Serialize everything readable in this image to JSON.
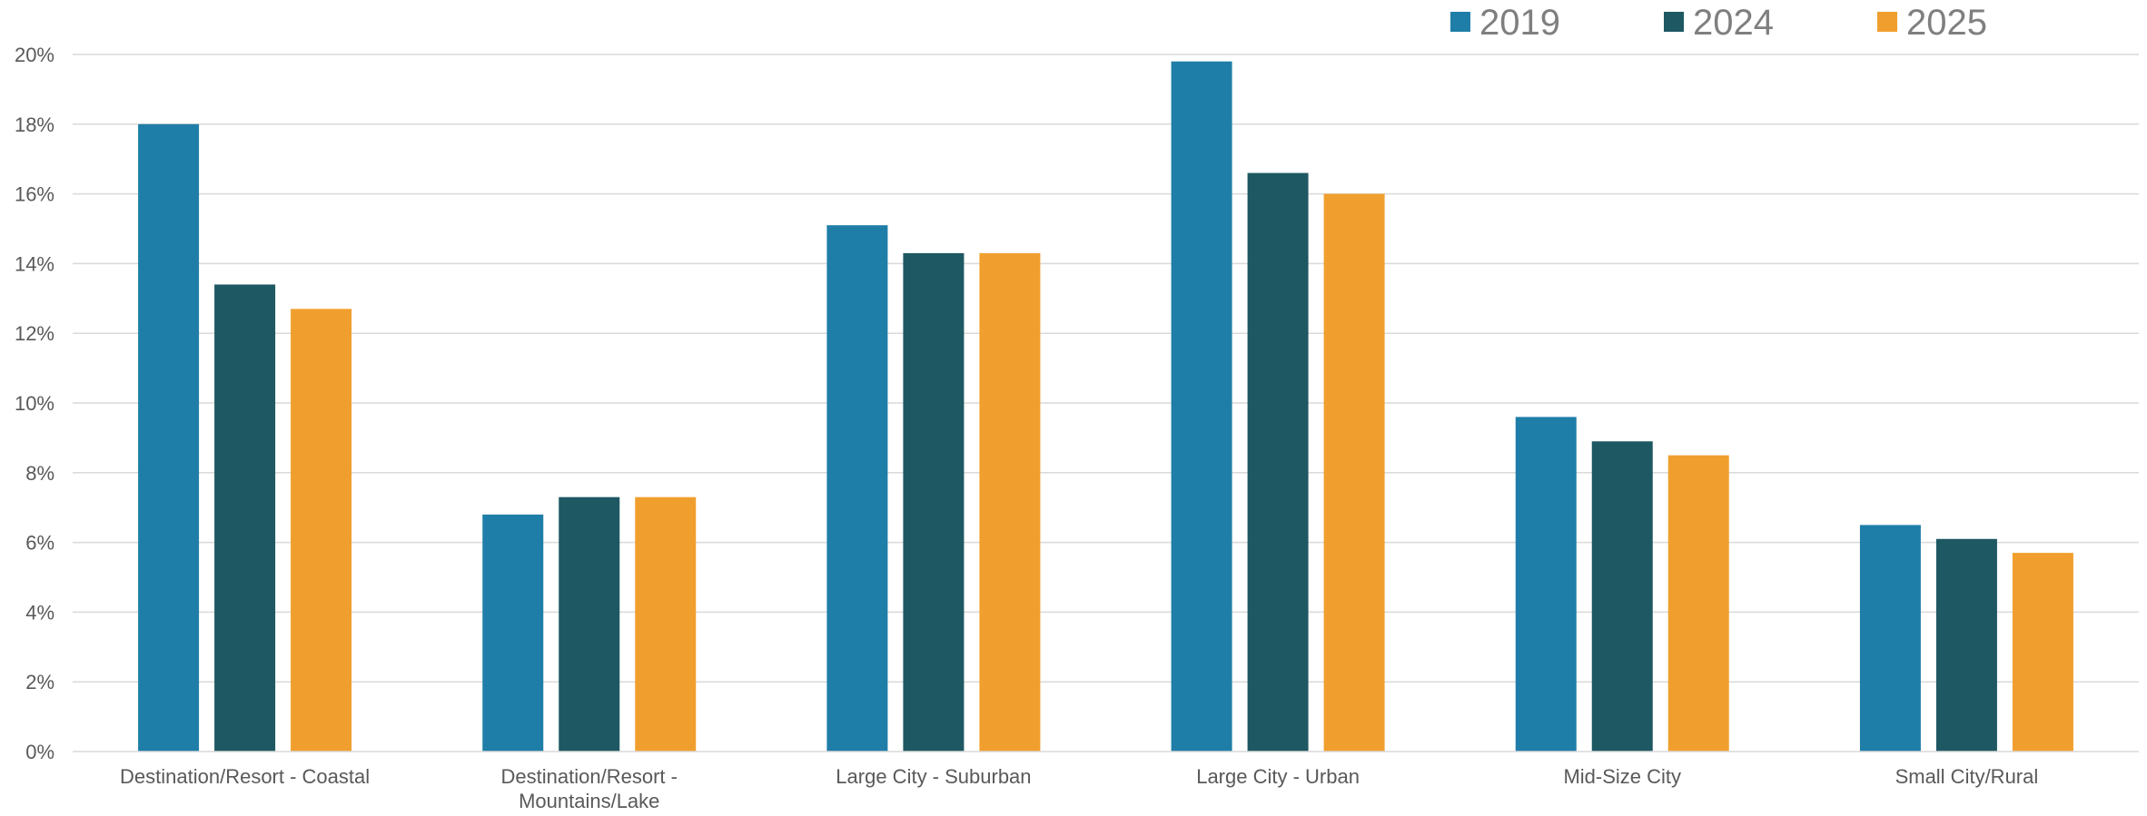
{
  "chart_data": {
    "type": "bar",
    "categories": [
      [
        "Destination/Resort - Coastal"
      ],
      [
        "Destination/Resort -",
        "Mountains/Lake"
      ],
      [
        "Large City - Suburban"
      ],
      [
        "Large City - Urban"
      ],
      [
        "Mid-Size City"
      ],
      [
        "Small City/Rural"
      ]
    ],
    "series": [
      {
        "name": "2019",
        "color": "#1f7ea8",
        "values": [
          18.0,
          6.8,
          15.1,
          19.8,
          9.6,
          6.5
        ]
      },
      {
        "name": "2024",
        "color": "#1e5862",
        "values": [
          13.4,
          7.3,
          14.3,
          16.6,
          8.9,
          6.1
        ]
      },
      {
        "name": "2025",
        "color": "#f09f2e",
        "values": [
          12.7,
          7.3,
          14.3,
          16.0,
          8.5,
          5.7
        ]
      }
    ],
    "ylim": [
      0,
      20
    ],
    "yticks": [
      0,
      2,
      4,
      6,
      8,
      10,
      12,
      14,
      16,
      18,
      20
    ],
    "ytick_labels": [
      "0%",
      "2%",
      "4%",
      "6%",
      "8%",
      "10%",
      "12%",
      "14%",
      "16%",
      "18%",
      "20%"
    ],
    "grid": true,
    "legend": "top-right",
    "title": "",
    "xlabel": "",
    "ylabel": ""
  }
}
